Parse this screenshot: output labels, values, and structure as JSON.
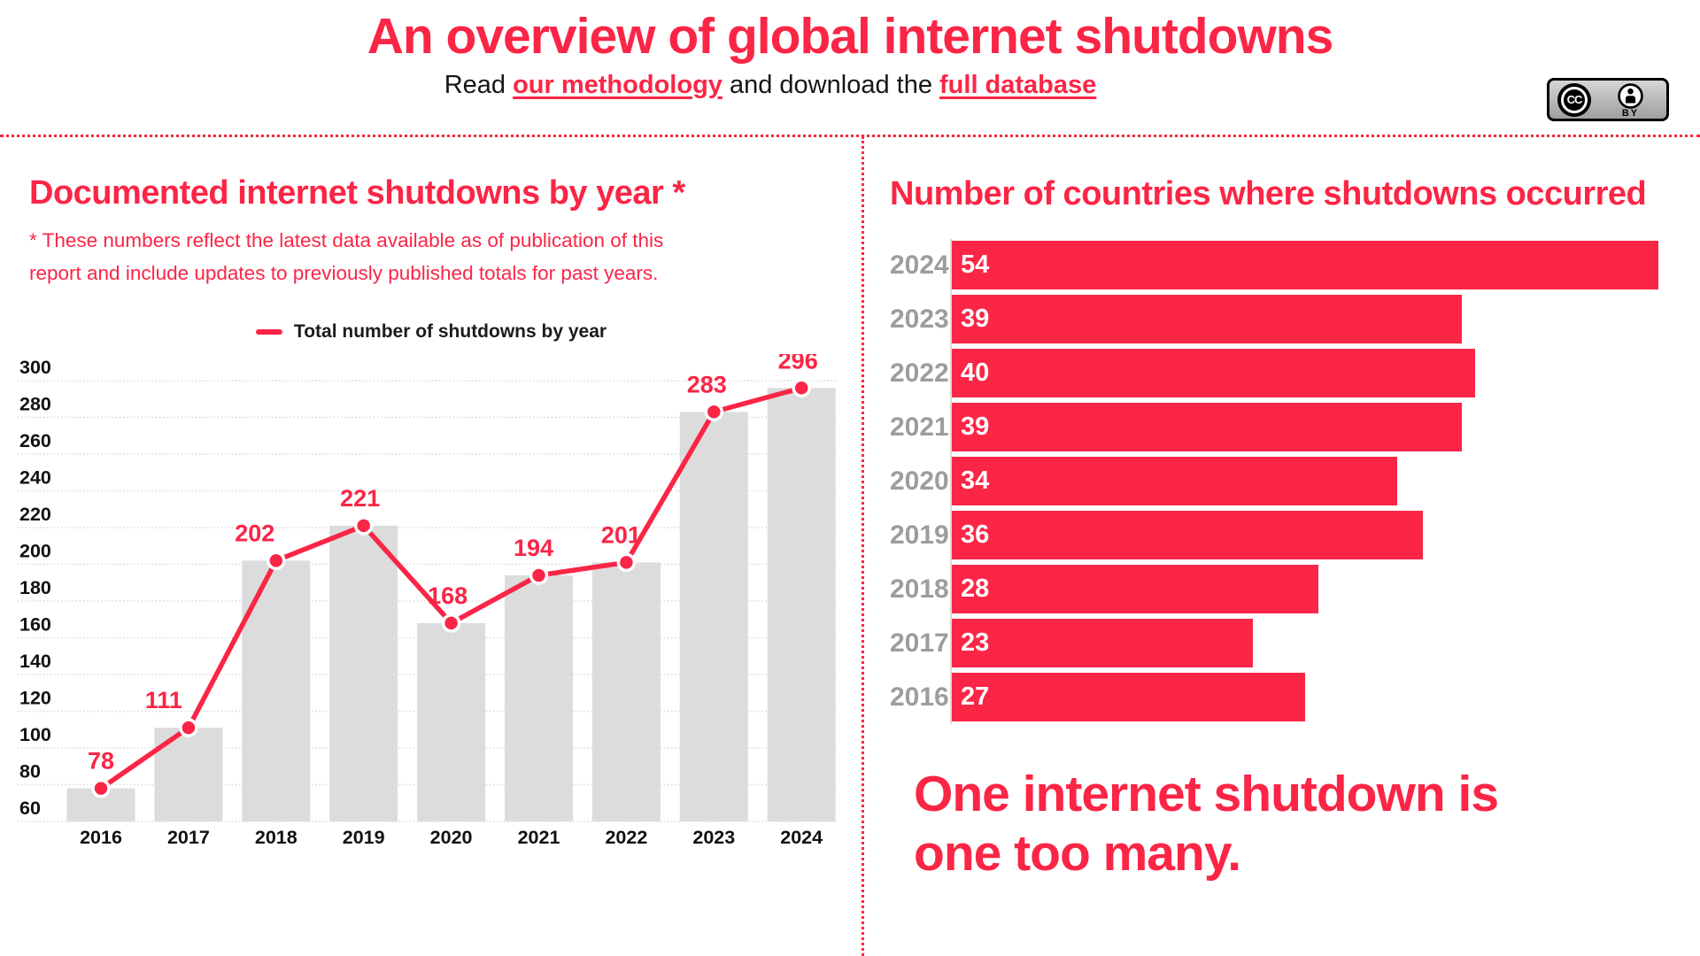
{
  "colors": {
    "accent": "#FB2546",
    "bar_gray": "#DCDCDC",
    "grid_gray": "#D8D8D8",
    "year_label_gray": "#9D9D9D",
    "text_dark": "#111111"
  },
  "header": {
    "title": "An overview of global internet shutdowns",
    "subtitle_prefix": "Read ",
    "methodology_link": "our methodology",
    "subtitle_middle": " and download the ",
    "database_link": "full database",
    "license": {
      "cc_label": "CC",
      "by_label": "BY"
    }
  },
  "left_panel": {
    "title": "Documented internet shutdowns by year *",
    "footnote_line1": "* These numbers reflect the latest data available as of publication of this",
    "footnote_line2": "report and include updates to previously published totals for past years.",
    "legend_label": "Total number of shutdowns by year",
    "chart_data": {
      "type": "bar+line",
      "title": "Documented internet shutdowns by year",
      "series_name": "Total number of shutdowns by year",
      "categories": [
        "2016",
        "2017",
        "2018",
        "2019",
        "2020",
        "2021",
        "2022",
        "2023",
        "2024"
      ],
      "values": [
        78,
        111,
        202,
        221,
        168,
        194,
        201,
        283,
        296
      ],
      "y_ticks": [
        60,
        80,
        100,
        120,
        140,
        160,
        180,
        200,
        220,
        240,
        260,
        280,
        300
      ],
      "ylim": [
        60,
        307
      ],
      "grid": "dotted-horizontal",
      "legend_position": "top-center"
    }
  },
  "right_panel": {
    "title": "Number of countries where shutdowns occurred",
    "chart_data": {
      "type": "bar",
      "orientation": "horizontal",
      "categories": [
        "2024",
        "2023",
        "2022",
        "2021",
        "2020",
        "2019",
        "2018",
        "2017",
        "2016"
      ],
      "values": [
        54,
        39,
        40,
        39,
        34,
        36,
        28,
        23,
        27
      ],
      "xlim": [
        0,
        57
      ],
      "value_labels": "inside-start",
      "grid": "off"
    },
    "tagline_line1": "One internet shutdown is",
    "tagline_line2": "one too many."
  }
}
